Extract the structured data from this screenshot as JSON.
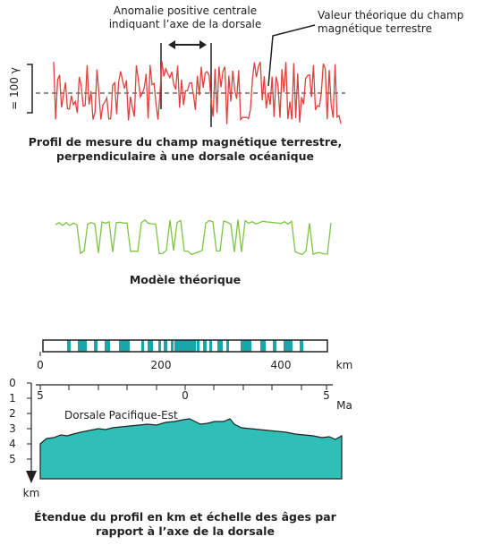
{
  "profile": {
    "anomaly_label": [
      "Anomalie positive centrale",
      "indiquant l’axe de la dorsale"
    ],
    "theory_label": [
      "Valeur théorique du champ",
      "magnétique terrestre"
    ],
    "scale_label": "= 100 γ",
    "caption": [
      "Profil de mesure du champ magnétique terrestre,",
      "perpendiculaire à une dorsale océanique"
    ]
  },
  "model": {
    "caption": "Modèle théorique"
  },
  "section": {
    "distance_ticks": [
      "0",
      "200",
      "400"
    ],
    "distance_unit": "km",
    "depth_ticks": [
      "0",
      "1",
      "2",
      "3",
      "4",
      "5"
    ],
    "depth_unit": "km",
    "age_ticks": [
      "5",
      "0",
      "5"
    ],
    "age_unit": "Ma",
    "ridge_label": "Dorsale Pacifique-Est",
    "caption": [
      "Étendue du profil en km et échelle des âges par",
      "rapport à l’axe de la dorsale"
    ]
  }
}
